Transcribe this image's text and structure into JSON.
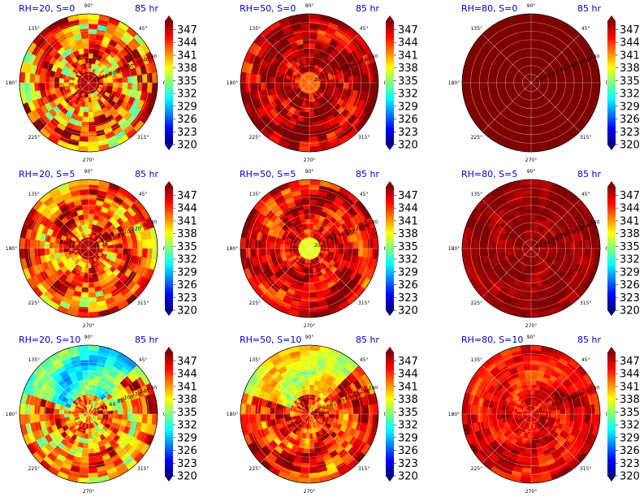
{
  "colormap": {
    "name": "jet",
    "stops": [
      "#00007f",
      "#0000ff",
      "#007fff",
      "#00ffff",
      "#7fff7f",
      "#ffff00",
      "#ff7f00",
      "#ff0000",
      "#7f0000"
    ]
  },
  "chart_data": [
    {
      "type": "heatmap",
      "projection": "polar",
      "title": "RH=20, S=0",
      "time_label": "85 hr",
      "field_level": 0.78,
      "dry_core": 0.95,
      "variability": 0.22,
      "green_patch": 0.0,
      "angle_ticks": [
        "0°",
        "45°",
        "90°",
        "135°",
        "180°",
        "225°",
        "270°",
        "315°"
      ],
      "radial_ticks": [
        20,
        40,
        60,
        80,
        100,
        120,
        140,
        160
      ],
      "colorbar": {
        "ticks": [
          320,
          323,
          326,
          329,
          332,
          335,
          338,
          341,
          344,
          347
        ],
        "range": [
          320,
          349
        ]
      }
    },
    {
      "type": "heatmap",
      "projection": "polar",
      "title": "RH=50, S=0",
      "time_label": "85 hr",
      "field_level": 0.96,
      "dry_core": 0.78,
      "variability": 0.12,
      "green_patch": 0.0,
      "angle_ticks": [
        "0°",
        "45°",
        "90°",
        "135°",
        "180°",
        "225°",
        "270°",
        "315°"
      ],
      "radial_ticks": [
        20,
        40,
        60,
        80,
        100,
        120,
        140,
        160
      ],
      "colorbar": {
        "ticks": [
          320,
          323,
          326,
          329,
          332,
          335,
          338,
          341,
          344,
          347
        ],
        "range": [
          320,
          349
        ]
      }
    },
    {
      "type": "heatmap",
      "projection": "polar",
      "title": "RH=80, S=0",
      "time_label": "85 hr",
      "field_level": 1.0,
      "dry_core": 0.0,
      "variability": 0.0,
      "green_patch": 0.0,
      "angle_ticks": [
        "0°",
        "45°",
        "90°",
        "135°",
        "180°",
        "225°",
        "270°",
        "315°"
      ],
      "radial_ticks": [
        20,
        40,
        60,
        80,
        100,
        120,
        140,
        160
      ],
      "colorbar": {
        "ticks": [
          320,
          323,
          326,
          329,
          332,
          335,
          338,
          341,
          344,
          347
        ],
        "range": [
          320,
          349
        ]
      }
    },
    {
      "type": "heatmap",
      "projection": "polar",
      "title": "RH=20, S=5",
      "time_label": "85 hr",
      "field_level": 0.8,
      "dry_core": 0.95,
      "variability": 0.18,
      "green_patch": 0.0,
      "angle_ticks": [
        "0°",
        "45°",
        "90°",
        "135°",
        "180°",
        "225°",
        "270°",
        "315°"
      ],
      "radial_ticks": [
        20,
        40,
        60,
        80,
        100,
        120,
        140,
        160
      ],
      "colorbar": {
        "ticks": [
          320,
          323,
          326,
          329,
          332,
          335,
          338,
          341,
          344,
          347
        ],
        "range": [
          320,
          349
        ]
      }
    },
    {
      "type": "heatmap",
      "projection": "polar",
      "title": "RH=50, S=5",
      "time_label": "85 hr",
      "field_level": 0.9,
      "dry_core": 0.6,
      "variability": 0.12,
      "green_patch": 0.0,
      "angle_ticks": [
        "0°",
        "45°",
        "90°",
        "135°",
        "180°",
        "225°",
        "270°",
        "315°"
      ],
      "radial_ticks": [
        20,
        40,
        60,
        80,
        100,
        120,
        140,
        160
      ],
      "colorbar": {
        "ticks": [
          320,
          323,
          326,
          329,
          332,
          335,
          338,
          341,
          344,
          347
        ],
        "range": [
          320,
          349
        ]
      }
    },
    {
      "type": "heatmap",
      "projection": "polar",
      "title": "RH=80, S=5",
      "time_label": "85 hr",
      "field_level": 0.98,
      "dry_core": 0.0,
      "variability": 0.04,
      "green_patch": 0.0,
      "angle_ticks": [
        "0°",
        "45°",
        "90°",
        "135°",
        "180°",
        "225°",
        "270°",
        "315°"
      ],
      "radial_ticks": [
        20,
        40,
        60,
        80,
        100,
        120,
        140,
        160
      ],
      "colorbar": {
        "ticks": [
          320,
          323,
          326,
          329,
          332,
          335,
          338,
          341,
          344,
          347
        ],
        "range": [
          320,
          349
        ]
      }
    },
    {
      "type": "heatmap",
      "projection": "polar",
      "title": "RH=20, S=10",
      "time_label": "85 hr",
      "field_level": 0.74,
      "dry_core": 0.0,
      "variability": 0.18,
      "green_patch": 0.35,
      "angle_ticks": [
        "0°",
        "45°",
        "90°",
        "135°",
        "180°",
        "225°",
        "270°",
        "315°"
      ],
      "radial_ticks": [
        20,
        40,
        60,
        80,
        100,
        120,
        140,
        160
      ],
      "colorbar": {
        "ticks": [
          320,
          323,
          326,
          329,
          332,
          335,
          338,
          341,
          344,
          347
        ],
        "range": [
          320,
          349
        ]
      }
    },
    {
      "type": "heatmap",
      "projection": "polar",
      "title": "RH=50, S=10",
      "time_label": "85 hr",
      "field_level": 0.85,
      "dry_core": 0.0,
      "variability": 0.14,
      "green_patch": 0.25,
      "angle_ticks": [
        "0°",
        "45°",
        "90°",
        "135°",
        "180°",
        "225°",
        "270°",
        "315°"
      ],
      "radial_ticks": [
        20,
        40,
        60,
        80,
        100,
        120,
        140,
        160
      ],
      "colorbar": {
        "ticks": [
          320,
          323,
          326,
          329,
          332,
          335,
          338,
          341,
          344,
          347
        ],
        "range": [
          320,
          349
        ]
      }
    },
    {
      "type": "heatmap",
      "projection": "polar",
      "title": "RH=80, S=10",
      "time_label": "85 hr",
      "field_level": 0.9,
      "dry_core": 0.0,
      "variability": 0.08,
      "green_patch": 0.05,
      "angle_ticks": [
        "0°",
        "45°",
        "90°",
        "135°",
        "180°",
        "225°",
        "270°",
        "315°"
      ],
      "radial_ticks": [
        20,
        40,
        60,
        80,
        100,
        120,
        140,
        160
      ],
      "colorbar": {
        "ticks": [
          320,
          323,
          326,
          329,
          332,
          335,
          338,
          341,
          344,
          347
        ],
        "range": [
          320,
          349
        ]
      }
    }
  ]
}
